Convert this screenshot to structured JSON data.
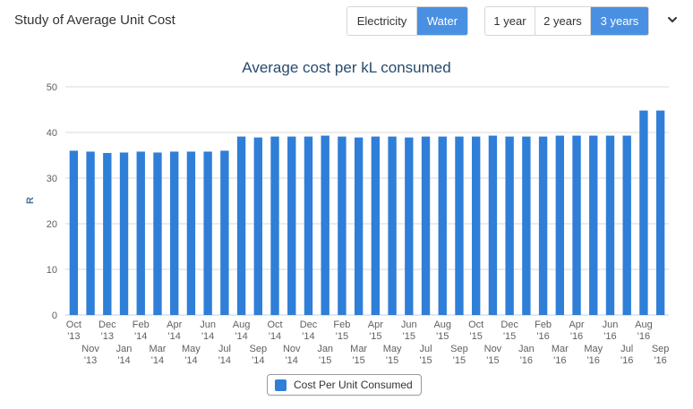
{
  "header": {
    "title": "Study of Average Unit Cost",
    "type_buttons": [
      {
        "label": "Electricity",
        "active": false
      },
      {
        "label": "Water",
        "active": true
      }
    ],
    "range_buttons": [
      {
        "label": "1 year",
        "active": false
      },
      {
        "label": "2 years",
        "active": false
      },
      {
        "label": "3 years",
        "active": true
      }
    ],
    "menu_icon": "chevron-down-icon"
  },
  "colors": {
    "accent": "#4a90e2",
    "bar": "#2f7ed8",
    "title": "#274b6d"
  },
  "chart_data": {
    "type": "bar",
    "title": "Average cost per kL consumed",
    "xlabel": "",
    "ylabel": "R",
    "ylim": [
      0,
      50
    ],
    "yticks": [
      0,
      10,
      20,
      30,
      40,
      50
    ],
    "grid": true,
    "legend_position": "bottom-center",
    "categories": [
      "Oct '13",
      "Nov '13",
      "Dec '13",
      "Jan '14",
      "Feb '14",
      "Mar '14",
      "Apr '14",
      "May '14",
      "Jun '14",
      "Jul '14",
      "Aug '14",
      "Sep '14",
      "Oct '14",
      "Nov '14",
      "Dec '14",
      "Jan '15",
      "Feb '15",
      "Mar '15",
      "Apr '15",
      "May '15",
      "Jun '15",
      "Jul '15",
      "Aug '15",
      "Sep '15",
      "Oct '15",
      "Nov '15",
      "Dec '15",
      "Jan '16",
      "Feb '16",
      "Mar '16",
      "Apr '16",
      "May '16",
      "Jun '16",
      "Jul '16",
      "Aug '16",
      "Sep '16"
    ],
    "series": [
      {
        "name": "Cost Per Unit Consumed",
        "values": [
          36.0,
          35.8,
          35.5,
          35.6,
          35.8,
          35.6,
          35.8,
          35.8,
          35.8,
          36.0,
          39.1,
          38.9,
          39.1,
          39.1,
          39.1,
          39.3,
          39.1,
          38.9,
          39.1,
          39.1,
          38.9,
          39.1,
          39.1,
          39.1,
          39.1,
          39.3,
          39.1,
          39.1,
          39.1,
          39.3,
          39.3,
          39.3,
          39.3,
          39.3,
          44.8,
          44.8
        ]
      }
    ]
  }
}
